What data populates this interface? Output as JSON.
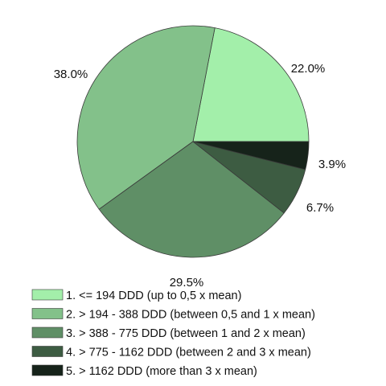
{
  "chart_data": {
    "type": "pie",
    "title": "",
    "start_angle_deg": 0,
    "direction": "counterclockwise",
    "legend_position": "bottom",
    "slices": [
      {
        "label": "1. <= 194 DDD (up to 0,5 x mean)",
        "value": 22.0,
        "display": "22.0%",
        "color": "#a3efaa"
      },
      {
        "label": "2. > 194 - 388 DDD (between 0,5 and 1 x mean)",
        "value": 38.0,
        "display": "38.0%",
        "color": "#83c18a"
      },
      {
        "label": "3. > 388 - 775 DDD (between 1 and 2 x mean)",
        "value": 29.5,
        "display": "29.5%",
        "color": "#5f8f66"
      },
      {
        "label": "4. > 775 - 1162 DDD (between 2 and 3 x mean)",
        "value": 6.7,
        "display": "6.7%",
        "color": "#3d5c42"
      },
      {
        "label": "5. > 1162 DDD (more than 3 x mean)",
        "value": 3.9,
        "display": "3.9%",
        "color": "#16231a"
      }
    ]
  }
}
